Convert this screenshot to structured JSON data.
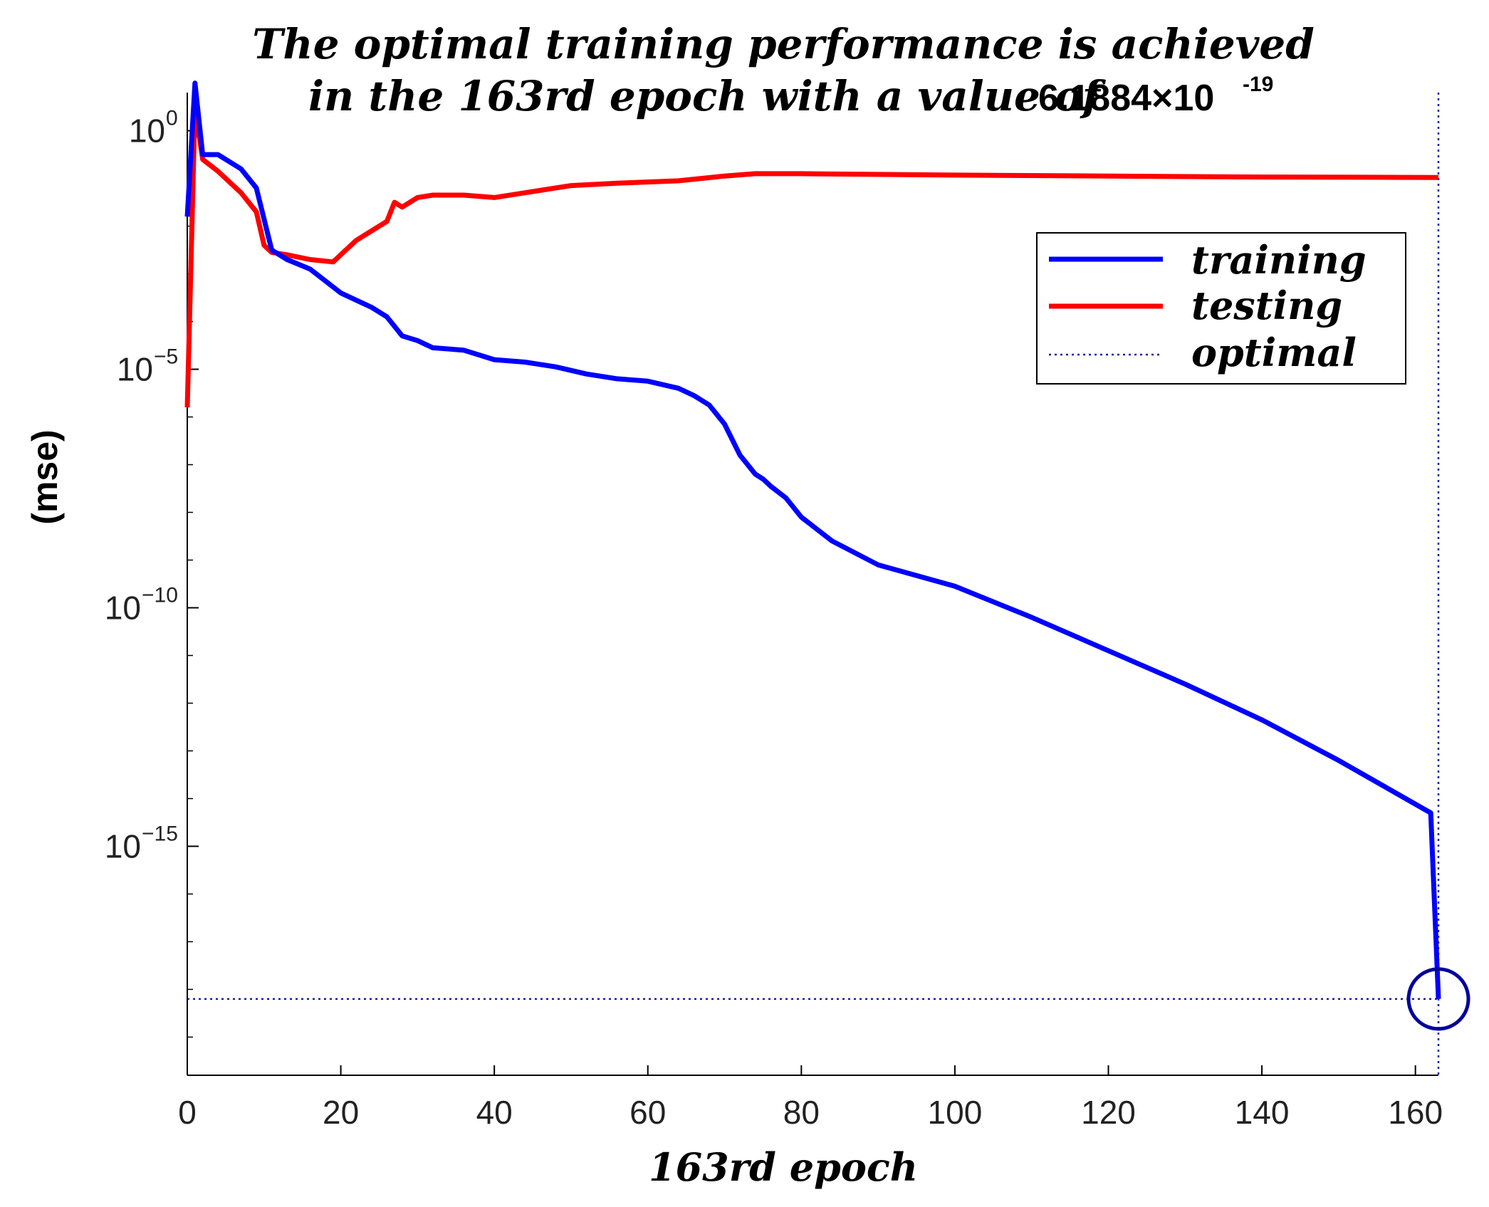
{
  "chart_data": {
    "type": "line",
    "title_line1": "The optimal training performance is achieved",
    "title_line2": "in the 163rd epoch with a value of",
    "title_value": "6.1884×10",
    "title_value_exp": "-19",
    "xlabel": "163rd epoch",
    "ylabel": "(mse)",
    "xlim": [
      0,
      163
    ],
    "ylim_log10": [
      -19.8,
      0.8
    ],
    "x_ticks": [
      0,
      20,
      40,
      60,
      80,
      100,
      120,
      140,
      160
    ],
    "x_tick_labels": [
      "0",
      "20",
      "40",
      "60",
      "80",
      "100",
      "120",
      "140",
      "160"
    ],
    "y_ticks_log10": [
      0,
      -5,
      -10,
      -15
    ],
    "y_tick_labels": [
      {
        "base": "10",
        "exp": "0"
      },
      {
        "base": "10",
        "exp": "−5"
      },
      {
        "base": "10",
        "exp": "−10"
      },
      {
        "base": "10",
        "exp": "−15"
      }
    ],
    "legend": {
      "position": "top-right",
      "entries": [
        {
          "label": "training",
          "color": "#0000ff",
          "style": "solid"
        },
        {
          "label": "testing",
          "color": "#ff0000",
          "style": "solid"
        },
        {
          "label": "optimal",
          "color": "#1a1aa6",
          "style": "dotted"
        }
      ]
    },
    "series": [
      {
        "name": "training",
        "color": "#0000ff",
        "x": [
          0,
          1,
          2,
          4,
          7,
          9,
          11,
          13,
          16,
          20,
          24,
          26,
          28,
          30,
          32,
          36,
          40,
          44,
          48,
          52,
          56,
          60,
          64,
          66,
          68,
          70,
          72,
          74,
          75,
          76,
          78,
          80,
          84,
          90,
          100,
          110,
          120,
          130,
          140,
          150,
          162,
          163
        ],
        "log10_y": [
          -1.8,
          1.0,
          -0.5,
          -0.5,
          -0.8,
          -1.2,
          -2.5,
          -2.7,
          -2.9,
          -3.4,
          -3.7,
          -3.9,
          -4.3,
          -4.4,
          -4.55,
          -4.6,
          -4.8,
          -4.85,
          -4.95,
          -5.1,
          -5.2,
          -5.25,
          -5.4,
          -5.55,
          -5.75,
          -6.15,
          -6.8,
          -7.2,
          -7.3,
          -7.45,
          -7.7,
          -8.1,
          -8.6,
          -9.1,
          -9.55,
          -10.2,
          -10.9,
          -11.6,
          -12.35,
          -13.2,
          -14.3,
          -18.2
        ]
      },
      {
        "name": "testing",
        "color": "#ff0000",
        "x": [
          0,
          1,
          2,
          4,
          7,
          9,
          10,
          11,
          13,
          16,
          19,
          22,
          26,
          27,
          28,
          30,
          32,
          36,
          40,
          44,
          50,
          56,
          64,
          70,
          74,
          80,
          100,
          120,
          140,
          163
        ],
        "log10_y": [
          -5.8,
          0.5,
          -0.6,
          -0.85,
          -1.3,
          -1.7,
          -2.4,
          -2.55,
          -2.6,
          -2.7,
          -2.75,
          -2.3,
          -1.9,
          -1.5,
          -1.6,
          -1.4,
          -1.35,
          -1.35,
          -1.4,
          -1.3,
          -1.15,
          -1.1,
          -1.05,
          -0.95,
          -0.9,
          -0.9,
          -0.93,
          -0.95,
          -0.97,
          -0.98
        ]
      }
    ],
    "optimal": {
      "epoch": 163,
      "log10_value": -18.2
    }
  }
}
